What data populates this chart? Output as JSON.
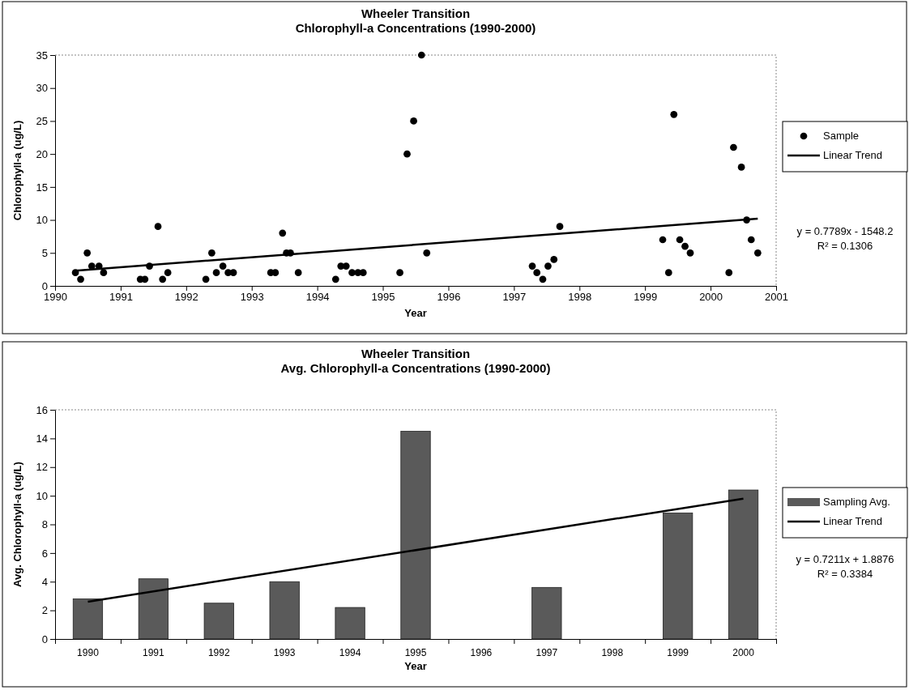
{
  "chart_data": [
    {
      "type": "scatter",
      "title": "Wheeler Transition",
      "subtitle": "Chlorophyll-a Concentrations (1990-2000)",
      "xlabel": "Year",
      "ylabel": "Chlorophyll-a (ug/L)",
      "xlim": [
        1990,
        2001
      ],
      "xticks": [
        1990,
        1991,
        1992,
        1993,
        1994,
        1995,
        1996,
        1997,
        1998,
        1999,
        2000,
        2001
      ],
      "ylim": [
        0,
        35
      ],
      "yticks": [
        0,
        5,
        10,
        15,
        20,
        25,
        30,
        35
      ],
      "grid": false,
      "legend": "right",
      "series": [
        {
          "name": "Sample",
          "marker": "circle",
          "color": "#000000",
          "x": [
            1990.31,
            1990.39,
            1990.49,
            1990.56,
            1990.67,
            1990.74,
            1991.3,
            1991.37,
            1991.44,
            1991.57,
            1991.64,
            1991.72,
            1992.3,
            1992.39,
            1992.46,
            1992.56,
            1992.64,
            1992.72,
            1993.29,
            1993.36,
            1993.47,
            1993.53,
            1993.59,
            1993.71,
            1994.28,
            1994.36,
            1994.44,
            1994.53,
            1994.62,
            1994.7,
            1995.26,
            1995.37,
            1995.47,
            1995.59,
            1995.67,
            1997.28,
            1997.35,
            1997.44,
            1997.52,
            1997.61,
            1997.7,
            1999.27,
            1999.36,
            1999.44,
            1999.53,
            1999.61,
            1999.69,
            2000.28,
            2000.35,
            2000.47,
            2000.55,
            2000.62,
            2000.72
          ],
          "values": [
            2,
            1,
            5,
            3,
            3,
            2,
            1,
            1,
            3,
            9,
            1,
            2,
            1,
            5,
            2,
            3,
            2,
            2,
            2,
            2,
            8,
            5,
            5,
            2,
            1,
            3,
            3,
            2,
            2,
            2,
            2,
            20,
            25,
            35,
            5,
            3,
            2,
            1,
            3,
            4,
            9,
            7,
            2,
            26,
            7,
            6,
            5,
            2,
            21,
            18,
            10,
            7,
            5
          ]
        },
        {
          "name": "Linear Trend",
          "type": "line",
          "color": "#000000",
          "x": [
            1990.31,
            2000.72
          ],
          "values": [
            2.3,
            10.2
          ]
        }
      ],
      "annotations": [
        "y = 0.7789x - 1548.2",
        "R² = 0.1306"
      ]
    },
    {
      "type": "bar",
      "title": "Wheeler Transition",
      "subtitle": "Avg. Chlorophyll-a Concentrations (1990-2000)",
      "xlabel": "Year",
      "ylabel": "Avg. Chlorophyll-a (ug/L)",
      "categories": [
        "1990",
        "1991",
        "1992",
        "1993",
        "1994",
        "1995",
        "1996",
        "1997",
        "1998",
        "1999",
        "2000"
      ],
      "ylim": [
        0,
        16
      ],
      "yticks": [
        0,
        2,
        4,
        6,
        8,
        10,
        12,
        14,
        16
      ],
      "grid": false,
      "legend": "right",
      "series": [
        {
          "name": "Sampling Avg.",
          "color": "#5a5a5a",
          "values": [
            2.8,
            4.2,
            2.5,
            4.0,
            2.2,
            14.5,
            null,
            3.6,
            null,
            8.8,
            10.4
          ]
        },
        {
          "name": "Linear Trend",
          "type": "line",
          "color": "#000000",
          "values": [
            2.6,
            null,
            null,
            null,
            null,
            null,
            null,
            null,
            null,
            null,
            9.8
          ]
        }
      ],
      "annotations": [
        "y = 0.7211x + 1.8876",
        "R² = 0.3384"
      ]
    }
  ]
}
